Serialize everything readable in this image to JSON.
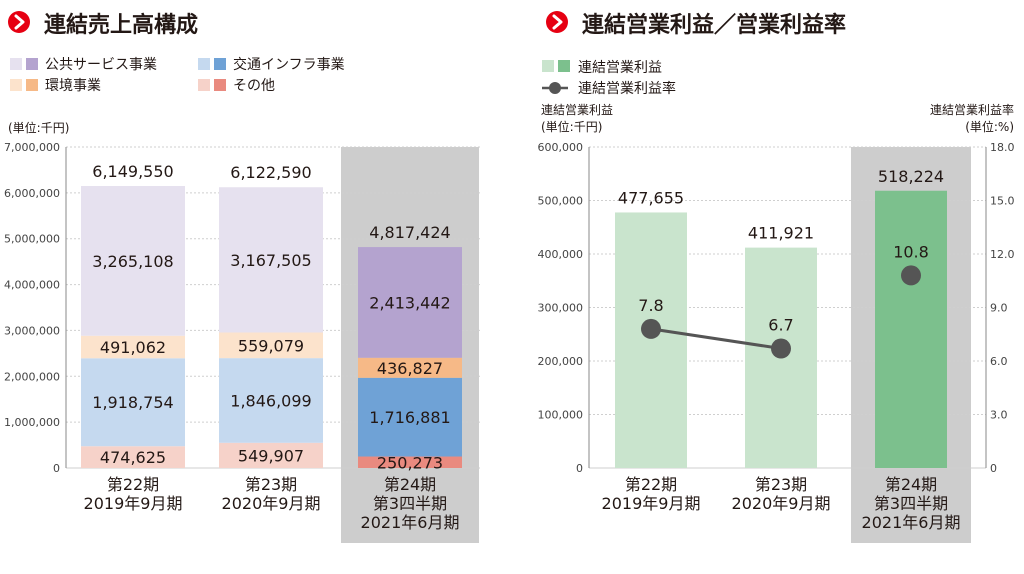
{
  "colors": {
    "accent": "#e60012",
    "highlight_bg": "#cdcdcd",
    "public_light": "#e6e1ef",
    "public_dark": "#b4a3cf",
    "transport_light": "#c5d9ef",
    "transport_dark": "#6fa2d6",
    "env_light": "#fce3cc",
    "env_dark": "#f6b987",
    "other_light": "#f6d2c9",
    "other_dark": "#e98a7f",
    "profit_light": "#c9e4cd",
    "profit_dark": "#7cc08d",
    "line": "#555555",
    "grid": "#cfcfcf",
    "text": "#231815"
  },
  "chart_data": [
    {
      "type": "bar",
      "stacked": true,
      "title": "連結売上高構成",
      "unit_label": "(単位:千円)",
      "legend": [
        {
          "label": "公共サービス事業",
          "series": 0
        },
        {
          "label": "交通インフラ事業",
          "series": 1
        },
        {
          "label": "環境事業",
          "series": 2
        },
        {
          "label": "その他",
          "series": 3
        }
      ],
      "categories": [
        [
          "第22期",
          "2019年9月期"
        ],
        [
          "第23期",
          "2020年9月期"
        ],
        [
          "第24期",
          "第3四半期",
          "2021年6月期"
        ]
      ],
      "series_order_bottom_to_top": [
        "その他",
        "交通インフラ事業",
        "環境事業",
        "公共サービス事業"
      ],
      "series": [
        {
          "name": "公共サービス事業",
          "values": [
            3265108,
            3167505,
            2413442
          ],
          "labels": [
            "3,265,108",
            "3,167,505",
            "2,413,442"
          ]
        },
        {
          "name": "交通インフラ事業",
          "values": [
            1918754,
            1846099,
            1716881
          ],
          "labels": [
            "1,918,754",
            "1,846,099",
            "1,716,881"
          ]
        },
        {
          "name": "環境事業",
          "values": [
            491062,
            559079,
            436827
          ],
          "labels": [
            "491,062",
            "559,079",
            "436,827"
          ]
        },
        {
          "name": "その他",
          "values": [
            474625,
            549907,
            250273
          ],
          "labels": [
            "474,625",
            "549,907",
            "250,273"
          ]
        }
      ],
      "totals": [
        6149550,
        6122590,
        4817424
      ],
      "total_labels": [
        "6,149,550",
        "6,122,590",
        "4,817,424"
      ],
      "highlight_index": 2,
      "ylim": [
        0,
        7000000
      ],
      "yticks": [
        0,
        1000000,
        2000000,
        3000000,
        4000000,
        5000000,
        6000000,
        7000000
      ],
      "ytick_labels": [
        "0",
        "1,000,000",
        "2,000,000",
        "3,000,000",
        "4,000,000",
        "5,000,000",
        "6,000,000",
        "7,000,000"
      ],
      "grid": true
    },
    {
      "type": "bar+line",
      "title": "連結営業利益／営業利益率",
      "legend": [
        {
          "label": "連結営業利益",
          "kind": "bar"
        },
        {
          "label": "連結営業利益率",
          "kind": "line"
        }
      ],
      "left_axis_label": [
        "連結営業利益",
        "(単位:千円)"
      ],
      "right_axis_label": [
        "連結営業利益率",
        "(単位:%)"
      ],
      "categories": [
        [
          "第22期",
          "2019年9月期"
        ],
        [
          "第23期",
          "2020年9月期"
        ],
        [
          "第24期",
          "第3四半期",
          "2021年6月期"
        ]
      ],
      "bars": {
        "name": "連結営業利益",
        "values": [
          477655,
          411921,
          518224
        ],
        "labels": [
          "477,655",
          "411,921",
          "518,224"
        ]
      },
      "line": {
        "name": "連結営業利益率",
        "values": [
          7.8,
          6.7,
          10.8
        ],
        "labels": [
          "7.8",
          "6.7",
          "10.8"
        ],
        "connected": [
          true,
          true,
          false
        ]
      },
      "highlight_index": 2,
      "ylim_left": [
        0,
        600000
      ],
      "yticks_left": [
        0,
        100000,
        200000,
        300000,
        400000,
        500000,
        600000
      ],
      "ytick_labels_left": [
        "0",
        "100,000",
        "200,000",
        "300,000",
        "400,000",
        "500,000",
        "600,000"
      ],
      "ylim_right": [
        0,
        18
      ],
      "yticks_right": [
        0,
        3,
        6,
        9,
        12,
        15,
        18
      ],
      "ytick_labels_right": [
        "0",
        "3.0",
        "6.0",
        "9.0",
        "12.0",
        "15.0",
        "18.0"
      ],
      "grid": true
    }
  ]
}
